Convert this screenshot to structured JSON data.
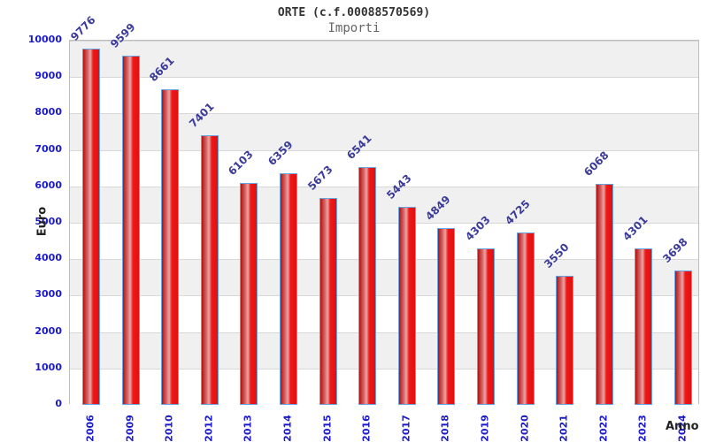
{
  "header": {
    "title": "ORTE (c.f.00088570569)",
    "subtitle": "Importi"
  },
  "chart_data": {
    "type": "bar",
    "title": "ORTE (c.f.00088570569)",
    "subtitle": "Importi",
    "xlabel": "Anno",
    "ylabel": "Euro",
    "categories": [
      "2006",
      "2009",
      "2010",
      "2012",
      "2013",
      "2014",
      "2015",
      "2016",
      "2017",
      "2018",
      "2019",
      "2020",
      "2021",
      "2022",
      "2023",
      "2024"
    ],
    "values": [
      9776,
      9599,
      8661,
      7401,
      6103,
      6359,
      5673,
      6541,
      5443,
      4849,
      4303,
      4725,
      3550,
      6068,
      4301,
      3698
    ],
    "ylim": [
      0,
      10000
    ],
    "ytick_step": 1000,
    "yticks": [
      "0",
      "1000",
      "2000",
      "3000",
      "4000",
      "5000",
      "6000",
      "7000",
      "8000",
      "9000",
      "10000"
    ],
    "grid": true,
    "legend": "none",
    "colors": {
      "bar_fill": "#ee1515",
      "bar_border": "#66a3e0",
      "value_label": "#3b3b99",
      "tick_label": "#1a1acc",
      "band_gray": "#f0f0f0",
      "gridline": "#d8d8d8",
      "title": "#333333",
      "subtitle": "#666666"
    }
  }
}
